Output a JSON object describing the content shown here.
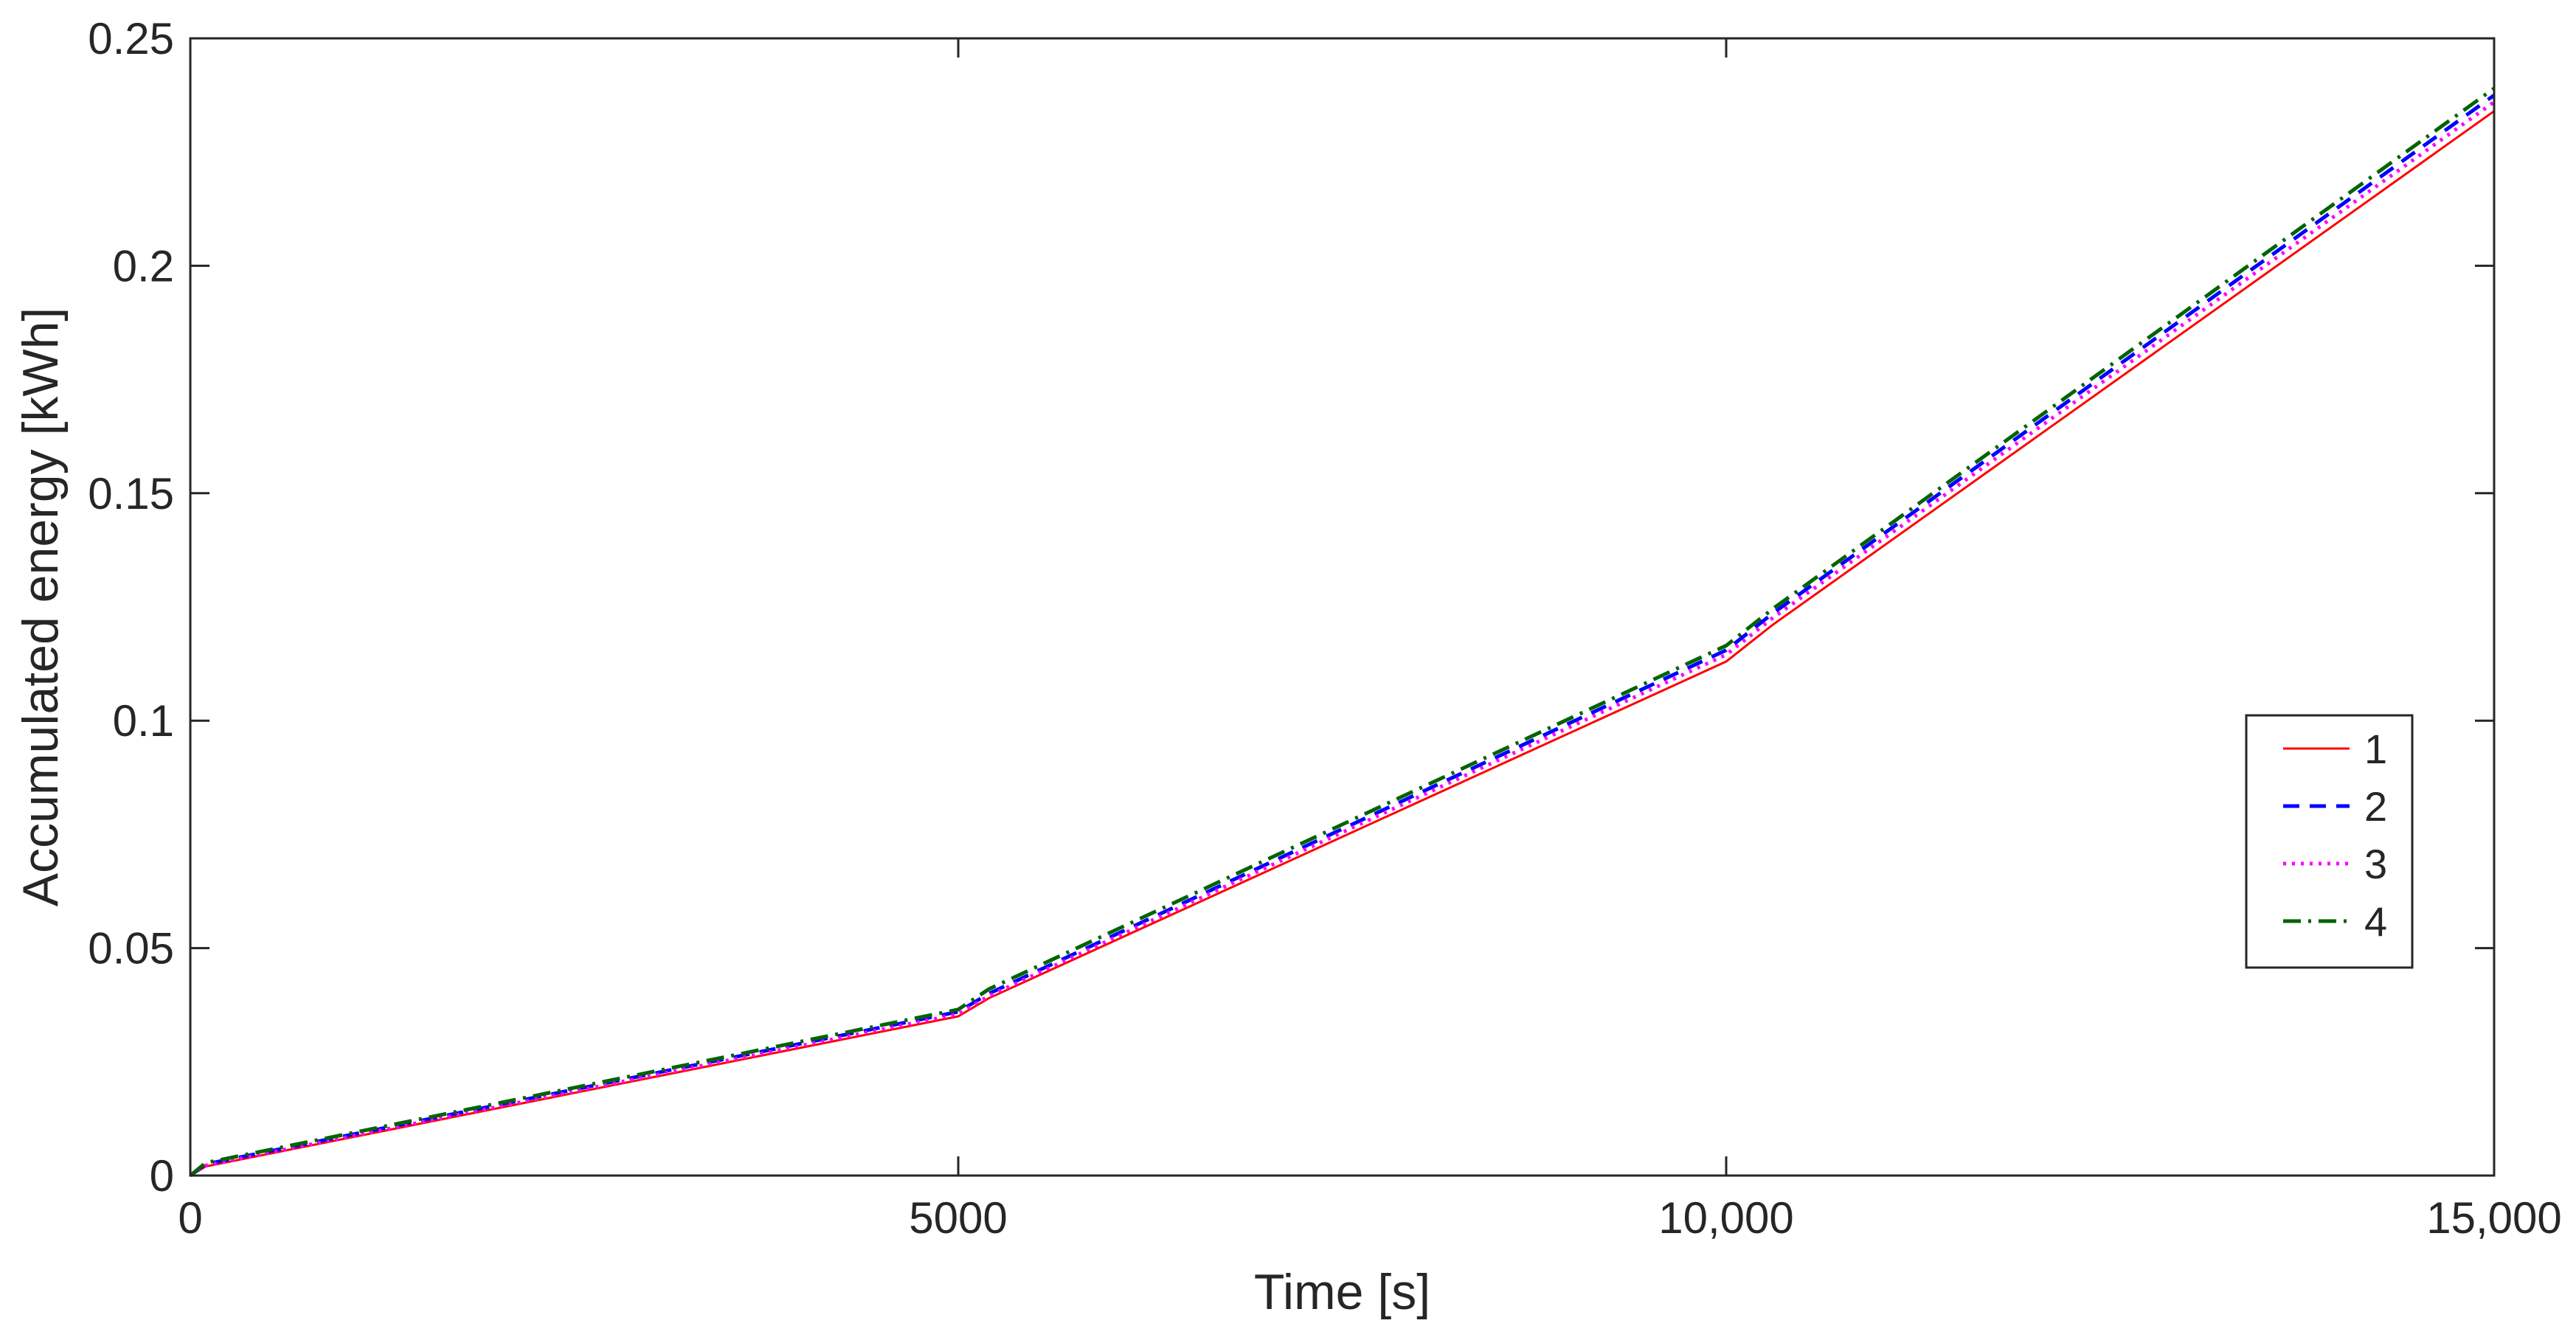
{
  "chart_data": {
    "type": "line",
    "title": "",
    "xlabel": "Time [s]",
    "ylabel": "Accumulated energy [kWh]",
    "xlim": [
      0,
      15000
    ],
    "ylim": [
      0,
      0.25
    ],
    "x_ticks": [
      0,
      5000,
      10000,
      15000
    ],
    "x_tick_labels": [
      "0",
      "5000",
      "10,000",
      "15,000"
    ],
    "y_ticks": [
      0,
      0.05,
      0.1,
      0.15,
      0.2,
      0.25
    ],
    "y_tick_labels": [
      "0",
      "0.05",
      "0.1",
      "0.15",
      "0.2",
      "0.25"
    ],
    "grid": false,
    "legend_position": "right",
    "series": [
      {
        "name": "1",
        "color": "#ff0000",
        "style": "solid",
        "x": [
          0,
          100,
          5000,
          5200,
          10000,
          10300,
          15000
        ],
        "y": [
          0,
          0.002,
          0.035,
          0.039,
          0.113,
          0.121,
          0.234
        ]
      },
      {
        "name": "2",
        "color": "#0000ff",
        "style": "dashed",
        "x": [
          0,
          100,
          5000,
          5200,
          10000,
          10300,
          15000
        ],
        "y": [
          0,
          0.0025,
          0.036,
          0.04,
          0.1155,
          0.1235,
          0.2375
        ]
      },
      {
        "name": "3",
        "color": "#ff00ff",
        "style": "dotted",
        "x": [
          0,
          100,
          5000,
          5200,
          10000,
          10300,
          15000
        ],
        "y": [
          0,
          0.0022,
          0.0355,
          0.0395,
          0.1145,
          0.1225,
          0.236
        ]
      },
      {
        "name": "4",
        "color": "#006400",
        "style": "dashdot",
        "x": [
          0,
          100,
          5000,
          5200,
          10000,
          10300,
          15000
        ],
        "y": [
          0,
          0.0028,
          0.0365,
          0.041,
          0.1165,
          0.1245,
          0.239
        ]
      }
    ]
  }
}
